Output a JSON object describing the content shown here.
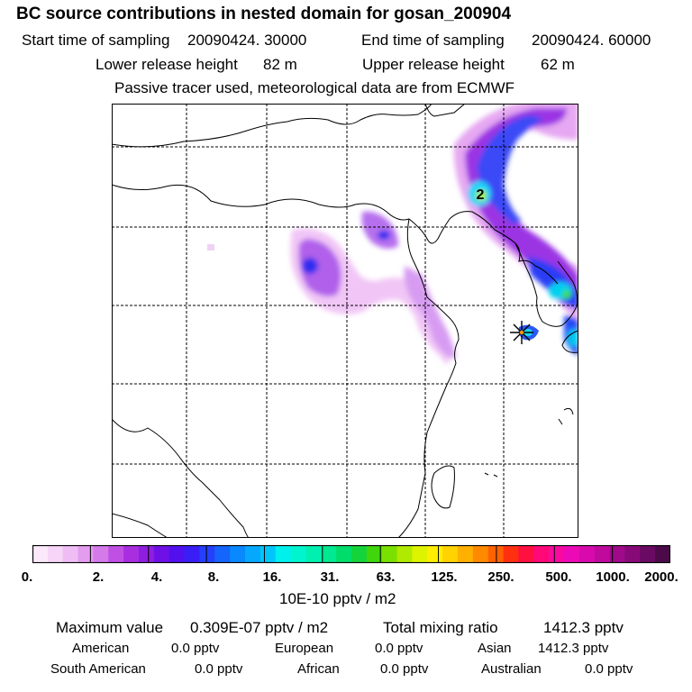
{
  "title": "BC  source contributions in nested domain for gosan_200904",
  "sampling": {
    "start_label": "Start time of sampling",
    "start_value": "20090424. 30000",
    "end_label": "End time of sampling",
    "end_value": "20090424. 60000"
  },
  "release": {
    "lower_label": "Lower release height",
    "lower_value": "82 m",
    "upper_label": "Upper release height",
    "upper_value": "62 m"
  },
  "note": "Passive tracer used, meteorological data are from ECMWF",
  "map": {
    "marker_label": "2",
    "receptor_symbol": "star"
  },
  "colorbar": {
    "ticks": [
      "0.",
      "2.",
      "4.",
      "8.",
      "16.",
      "31.",
      "63.",
      "125.",
      "250.",
      "500.",
      "1000.",
      "2000."
    ],
    "colors": [
      "#fbe9fb",
      "#f6d5f8",
      "#efbdf4",
      "#e49cef",
      "#d47ae9",
      "#c050e4",
      "#a92ee0",
      "#8e1fe0",
      "#6f10e6",
      "#5210ef",
      "#3a1ef6",
      "#2540fb",
      "#1564fc",
      "#0a88fd",
      "#05a8fd",
      "#00c6fc",
      "#00f0ee",
      "#00f5cf",
      "#00f0b0",
      "#00e890",
      "#00dd6a",
      "#14d43c",
      "#40d60c",
      "#7ae000",
      "#b0ea00",
      "#def300",
      "#ffee00",
      "#ffd200",
      "#ffb000",
      "#ff8a00",
      "#ff6200",
      "#ff3010",
      "#ff1040",
      "#ff0878",
      "#f80aa0",
      "#ec0ab6",
      "#d80aae",
      "#c00a9e",
      "#a00a8a",
      "#880a78",
      "#6a0a62",
      "#4c0a4a"
    ],
    "unit": "10E-10 pptv / m2"
  },
  "summary": {
    "max_label": "Maximum value",
    "max_value": "0.309E-07 pptv / m2",
    "total_label": "Total mixing ratio",
    "total_value": "1412.3 pptv"
  },
  "regions": [
    {
      "name": "American",
      "value": "0.0 pptv"
    },
    {
      "name": "European",
      "value": "0.0 pptv"
    },
    {
      "name": "Asian",
      "value": "1412.3 pptv"
    },
    {
      "name": "South American",
      "value": "0.0 pptv"
    },
    {
      "name": "African",
      "value": "0.0 pptv"
    },
    {
      "name": "Australian",
      "value": "0.0 pptv"
    }
  ]
}
